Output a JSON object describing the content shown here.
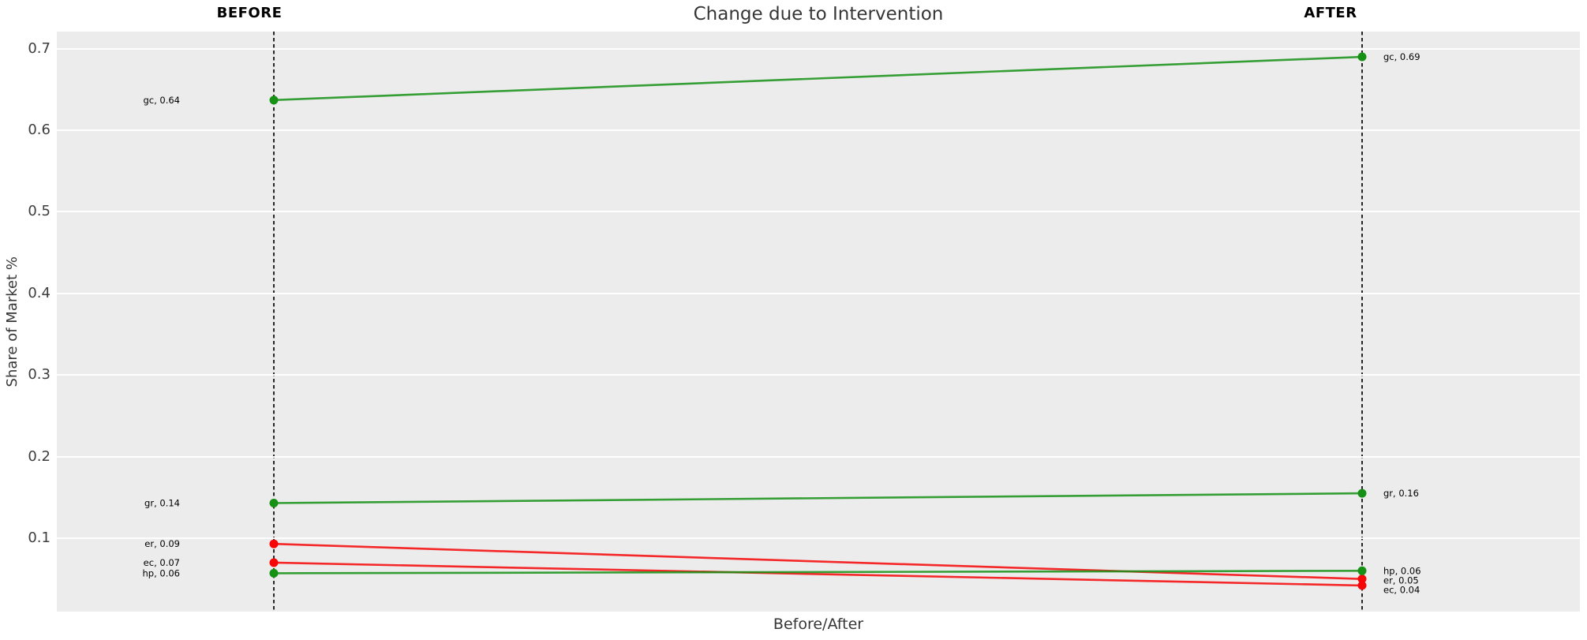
{
  "chart": {
    "title": "Change due to Intervention",
    "xlabel": "Before/After",
    "ylabel": "Share of Market %",
    "column_labels": {
      "before": "BEFORE",
      "after": "AFTER"
    }
  },
  "chart_data": {
    "type": "line",
    "subtype": "slopegraph",
    "title": "Change due to Intervention",
    "xlabel": "Before/After",
    "ylabel": "Share of Market %",
    "categories": [
      "BEFORE",
      "AFTER"
    ],
    "yticks": [
      0.1,
      0.2,
      0.3,
      0.4,
      0.5,
      0.6,
      0.7
    ],
    "ylim": [
      0.01,
      0.721
    ],
    "grid": "horizontal-major-only",
    "legend": "none",
    "series": [
      {
        "name": "gc",
        "direction": "increase",
        "color": "#169116",
        "before": 0.637,
        "after": 0.69,
        "before_label": "gc, 0.64",
        "after_label": "gc, 0.69"
      },
      {
        "name": "gr",
        "direction": "increase",
        "color": "#169116",
        "before": 0.143,
        "after": 0.155,
        "before_label": "gr, 0.14",
        "after_label": "gr, 0.16"
      },
      {
        "name": "er",
        "direction": "decrease",
        "color": "#f60606",
        "before": 0.093,
        "after": 0.05,
        "before_label": "er, 0.09",
        "after_label": "er, 0.05"
      },
      {
        "name": "ec",
        "direction": "decrease",
        "color": "#f60606",
        "before": 0.07,
        "after": 0.042,
        "before_label": "ec, 0.07",
        "after_label": "ec, 0.04"
      },
      {
        "name": "hp",
        "direction": "increase",
        "color": "#169116",
        "before": 0.057,
        "after": 0.06,
        "before_label": "hp, 0.06",
        "after_label": "hp, 0.06"
      }
    ],
    "colors": {
      "increase": "#169116",
      "decrease": "#f60606",
      "plot_background": "#ececec",
      "gridline": "#ffffff",
      "dashed_guide": "#111111",
      "text": "#363636",
      "annotation_text": "#000000"
    }
  }
}
